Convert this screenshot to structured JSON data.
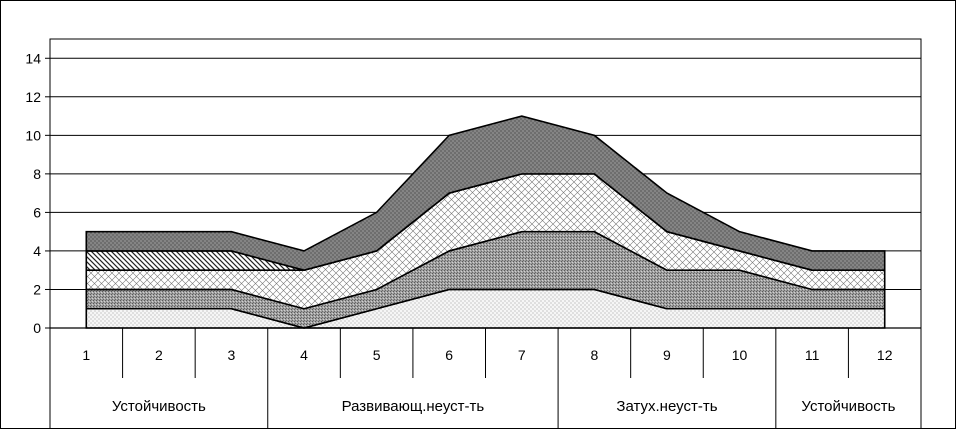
{
  "chart_data": {
    "type": "area",
    "stacked": true,
    "x": [
      1,
      2,
      3,
      4,
      5,
      6,
      7,
      8,
      9,
      10,
      11,
      12
    ],
    "categories": [
      "1",
      "2",
      "3",
      "4",
      "5",
      "6",
      "7",
      "8",
      "9",
      "10",
      "11",
      "12"
    ],
    "groups": [
      {
        "label": "Устойчивость",
        "from": 1,
        "to": 3
      },
      {
        "label": "Развивающ.неуст-ть",
        "from": 4,
        "to": 7
      },
      {
        "label": "Затух.неуст-ть",
        "from": 8,
        "to": 10
      },
      {
        "label": "Устойчивость",
        "from": 11,
        "to": 12
      }
    ],
    "series": [
      {
        "pattern": "fine-dots",
        "fill": "#f4f4f4",
        "values": [
          1,
          1,
          1,
          0,
          1,
          2,
          2,
          2,
          1,
          1,
          1,
          1
        ]
      },
      {
        "pattern": "grey-speckle",
        "fill": "#9a9a9a",
        "values": [
          1,
          1,
          1,
          1,
          1,
          2,
          3,
          3,
          2,
          2,
          1,
          1
        ]
      },
      {
        "pattern": "cross-hatch",
        "fill": "#ffffff",
        "values": [
          1,
          1,
          1,
          2,
          2,
          3,
          3,
          3,
          2,
          1,
          1,
          1
        ]
      },
      {
        "pattern": "diagonal-lines",
        "fill": "#ffffff",
        "values": [
          1,
          1,
          1,
          0,
          0,
          0,
          0,
          0,
          0,
          0,
          0,
          0
        ]
      },
      {
        "pattern": "dark-dots",
        "fill": "#6f6f6f",
        "values": [
          1,
          1,
          1,
          1,
          2,
          3,
          3,
          2,
          2,
          1,
          1,
          1
        ]
      }
    ],
    "y_ticks": [
      0,
      2,
      4,
      6,
      8,
      10,
      12,
      14
    ],
    "ylim": [
      0,
      15
    ],
    "grid": true,
    "legend": "none"
  }
}
